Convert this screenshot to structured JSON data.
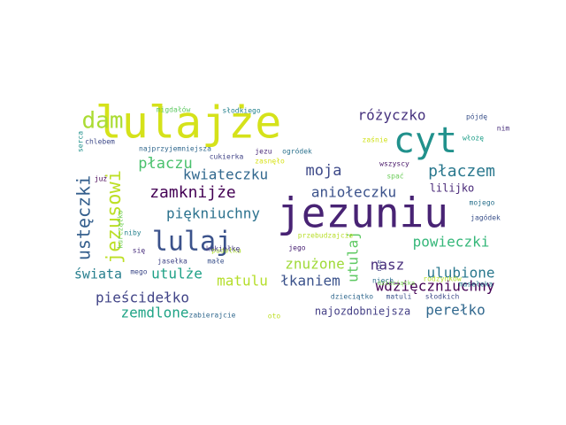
{
  "words": [
    {
      "text": "lulajże",
      "color": "#d5e21a"
    },
    {
      "text": "jezuniu",
      "color": "#482374"
    },
    {
      "text": "cyt",
      "color": "#21918c"
    },
    {
      "text": "dam",
      "color": "#aadc32"
    },
    {
      "text": "lulaj",
      "color": "#3b528b"
    },
    {
      "text": "jezusowi",
      "color": "#bddf26"
    },
    {
      "text": "ustęczki",
      "color": "#355f8d"
    },
    {
      "text": "różyczko",
      "color": "#46327e"
    },
    {
      "text": "płaczu",
      "color": "#4ac16d"
    },
    {
      "text": "płaczem",
      "color": "#2a788e"
    },
    {
      "text": "moja",
      "color": "#3e4a89"
    },
    {
      "text": "kwiateczku",
      "color": "#31688e"
    },
    {
      "text": "zamknijże",
      "color": "#440154"
    },
    {
      "text": "aniołeczku",
      "color": "#3b528b"
    },
    {
      "text": "liliјko",
      "color": "#482878"
    },
    {
      "text": "piękniuchny",
      "color": "#2c728e"
    },
    {
      "text": "powieczki",
      "color": "#35b779"
    },
    {
      "text": "znużone",
      "color": "#a0da39"
    },
    {
      "text": "utulaj",
      "color": "#5ec962"
    },
    {
      "text": "nasz",
      "color": "#472d7b"
    },
    {
      "text": "ulubione",
      "color": "#2a788e"
    },
    {
      "text": "świata",
      "color": "#277f8e"
    },
    {
      "text": "utulże",
      "color": "#1fa187"
    },
    {
      "text": "matulu",
      "color": "#b5de2b"
    },
    {
      "text": "łkaniem",
      "color": "#3b528b"
    },
    {
      "text": "wdzięczniuchny",
      "color": "#440154"
    },
    {
      "text": "pieścidełko",
      "color": "#414487"
    },
    {
      "text": "zemdlone",
      "color": "#20a486"
    },
    {
      "text": "perełko",
      "color": "#31688e"
    },
    {
      "text": "najozdobniejsza",
      "color": "#433e85"
    },
    {
      "text": "migdałów",
      "color": "#5ec962"
    },
    {
      "text": "słodkiego",
      "color": "#26828e"
    },
    {
      "text": "pójdę",
      "color": "#3b528b"
    },
    {
      "text": "nim",
      "color": "#472d7b"
    },
    {
      "text": "włożę",
      "color": "#1f9e89"
    },
    {
      "text": "zaśnie",
      "color": "#d0e11c"
    },
    {
      "text": "serca",
      "color": "#21918c"
    },
    {
      "text": "chlebem",
      "color": "#3e4a89"
    },
    {
      "text": "już",
      "color": "#440154"
    },
    {
      "text": "najprzyjemniejsza",
      "color": "#31688e"
    },
    {
      "text": "cukierka",
      "color": "#414487"
    },
    {
      "text": "jezu",
      "color": "#482878"
    },
    {
      "text": "ogródek",
      "color": "#2c728e"
    },
    {
      "text": "zasnęło",
      "color": "#d8e219"
    },
    {
      "text": "wszyscy",
      "color": "#481769"
    },
    {
      "text": "spać",
      "color": "#6ccd5a"
    },
    {
      "text": "mojego",
      "color": "#2c728e"
    },
    {
      "text": "jagódek",
      "color": "#3b528b"
    },
    {
      "text": "kurczątko",
      "color": "#70cf57"
    },
    {
      "text": "niby",
      "color": "#26828e"
    },
    {
      "text": "się",
      "color": "#472d7b"
    },
    {
      "text": "pudełka",
      "color": "#addc30"
    },
    {
      "text": "przebudzajcie",
      "color": "#b8de29"
    },
    {
      "text": "jego",
      "color": "#482173"
    },
    {
      "text": "kukiełkę",
      "color": "#443983"
    },
    {
      "text": "małe",
      "color": "#3b528b"
    },
    {
      "text": "jasełka",
      "color": "#414487"
    },
    {
      "text": "mego",
      "color": "#3e4a89"
    },
    {
      "text": "niech",
      "color": "#2d708e"
    },
    {
      "text": "dzieciątka",
      "color": "#7ad151"
    },
    {
      "text": "rodzynków",
      "color": "#b5de2b"
    },
    {
      "text": "masełeka",
      "color": "#2a788e"
    },
    {
      "text": "dzieciątko",
      "color": "#31688e"
    },
    {
      "text": "matuli",
      "color": "#3b528b"
    },
    {
      "text": "słodkich",
      "color": "#3e4a89"
    },
    {
      "text": "nie",
      "color": "#414487"
    },
    {
      "text": "zabierajcie",
      "color": "#31688e"
    },
    {
      "text": "oto",
      "color": "#bddf26"
    }
  ]
}
